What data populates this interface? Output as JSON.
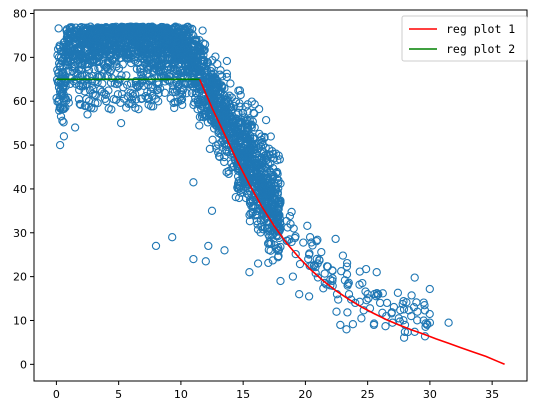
{
  "chart_data": {
    "type": "scatter",
    "title": "",
    "xlabel": "",
    "ylabel": "",
    "xlim": [
      -1.8,
      37.8
    ],
    "ylim": [
      -3.8,
      80.8
    ],
    "x_ticks": [
      0,
      5,
      10,
      15,
      20,
      25,
      30,
      35
    ],
    "y_ticks": [
      0,
      10,
      20,
      30,
      40,
      50,
      60,
      70,
      80
    ],
    "grid": false,
    "legend_position": "top-right",
    "scatter": {
      "marker": "open-circle",
      "color": "#1f77b4",
      "description": "dense cloud: plateau ~65-76 for x in 0-11, decaying toward ~10 near x=31",
      "sample_points": [
        {
          "x": 0.3,
          "y": 50
        },
        {
          "x": 0.6,
          "y": 52
        },
        {
          "x": 1.5,
          "y": 54
        },
        {
          "x": 2.5,
          "y": 57
        },
        {
          "x": 4.0,
          "y": 60
        },
        {
          "x": 5.2,
          "y": 55
        },
        {
          "x": 8.0,
          "y": 27
        },
        {
          "x": 9.3,
          "y": 29
        },
        {
          "x": 11.0,
          "y": 24
        },
        {
          "x": 12.0,
          "y": 23.5
        },
        {
          "x": 12.2,
          "y": 27
        },
        {
          "x": 11.0,
          "y": 41.5
        },
        {
          "x": 12.5,
          "y": 35
        },
        {
          "x": 13.5,
          "y": 26
        },
        {
          "x": 15.5,
          "y": 21
        },
        {
          "x": 16.2,
          "y": 23
        },
        {
          "x": 18.0,
          "y": 19
        },
        {
          "x": 19.0,
          "y": 20
        },
        {
          "x": 19.5,
          "y": 16
        },
        {
          "x": 20.3,
          "y": 15.5
        },
        {
          "x": 21.0,
          "y": 23
        },
        {
          "x": 22.0,
          "y": 18
        },
        {
          "x": 22.5,
          "y": 12
        },
        {
          "x": 22.8,
          "y": 9
        },
        {
          "x": 23.3,
          "y": 8
        },
        {
          "x": 23.5,
          "y": 16
        },
        {
          "x": 24.0,
          "y": 14
        },
        {
          "x": 24.5,
          "y": 10.5
        },
        {
          "x": 25.0,
          "y": 16
        },
        {
          "x": 25.5,
          "y": 9
        },
        {
          "x": 26.0,
          "y": 14
        },
        {
          "x": 26.5,
          "y": 11
        },
        {
          "x": 27.0,
          "y": 9.5
        },
        {
          "x": 27.5,
          "y": 10.5
        },
        {
          "x": 28.0,
          "y": 9
        },
        {
          "x": 28.5,
          "y": 11
        },
        {
          "x": 29.0,
          "y": 12
        },
        {
          "x": 29.5,
          "y": 10
        },
        {
          "x": 30.0,
          "y": 9.5
        },
        {
          "x": 31.5,
          "y": 9.5
        }
      ]
    },
    "series": [
      {
        "name": "reg plot 1",
        "color": "#ff0000",
        "x": [
          11.5,
          12.5,
          13.5,
          14.5,
          15.5,
          16.5,
          17.5,
          18.5,
          19.5,
          20.5,
          21.5,
          22.5,
          23.5,
          24.5,
          25.5,
          26.5,
          27.5,
          28.5,
          29.5,
          30.5,
          31.5,
          32.5,
          33.5,
          34.5,
          35.5,
          36.0
        ],
        "y": [
          65,
          58.5,
          52.5,
          46.5,
          41,
          36,
          31.5,
          27.6,
          24.3,
          21.4,
          18.9,
          16.7,
          14.8,
          13.1,
          11.6,
          10.2,
          9.0,
          7.9,
          6.9,
          5.8,
          4.8,
          3.8,
          2.8,
          1.8,
          0.6,
          0
        ]
      },
      {
        "name": "reg plot 2",
        "color": "#008000",
        "x": [
          0,
          11.5
        ],
        "y": [
          65,
          65
        ]
      }
    ]
  }
}
